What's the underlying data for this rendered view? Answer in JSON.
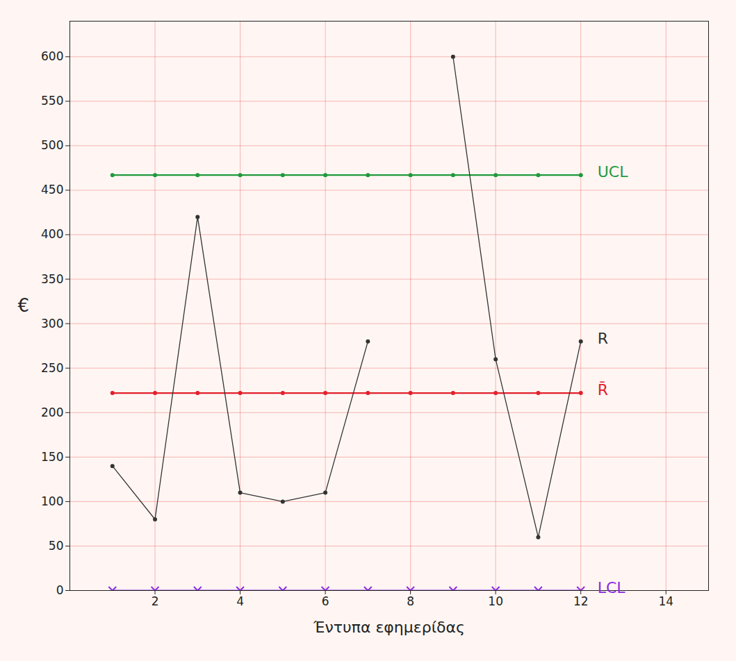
{
  "chart_data": {
    "type": "line",
    "x_label": "Έντυπα εφημερίδας",
    "y_label": "€",
    "x": [
      1,
      2,
      3,
      4,
      5,
      6,
      7,
      8,
      9,
      10,
      11,
      12
    ],
    "series": [
      {
        "name": "UCL",
        "color": "#1f9a3c",
        "marker": "dot",
        "line_style": "solid",
        "values": [
          467,
          467,
          467,
          467,
          467,
          467,
          467,
          467,
          467,
          467,
          467,
          467
        ]
      },
      {
        "name": "R̄",
        "color": "#e3202b",
        "marker": "dot",
        "line_style": "solid",
        "values": [
          222,
          222,
          222,
          222,
          222,
          222,
          222,
          222,
          222,
          222,
          222,
          222
        ]
      },
      {
        "name": "R",
        "color": "#333333",
        "marker": "dot",
        "line_style": "solid",
        "values": [
          140,
          80,
          420,
          110,
          100,
          110,
          280,
          null,
          600,
          260,
          60,
          280
        ]
      },
      {
        "name": "LCL",
        "color": "#8a2be2",
        "marker": "x",
        "line_style": "solid",
        "values": [
          0,
          0,
          0,
          0,
          0,
          0,
          0,
          0,
          0,
          0,
          0,
          0
        ]
      }
    ],
    "xlim": [
      0,
      15
    ],
    "ylim": [
      0,
      640
    ],
    "xticks": [
      2,
      4,
      6,
      8,
      10,
      12,
      14
    ],
    "yticks": [
      0,
      50,
      100,
      150,
      200,
      250,
      300,
      350,
      400,
      450,
      500,
      550,
      600
    ],
    "grid": true
  }
}
